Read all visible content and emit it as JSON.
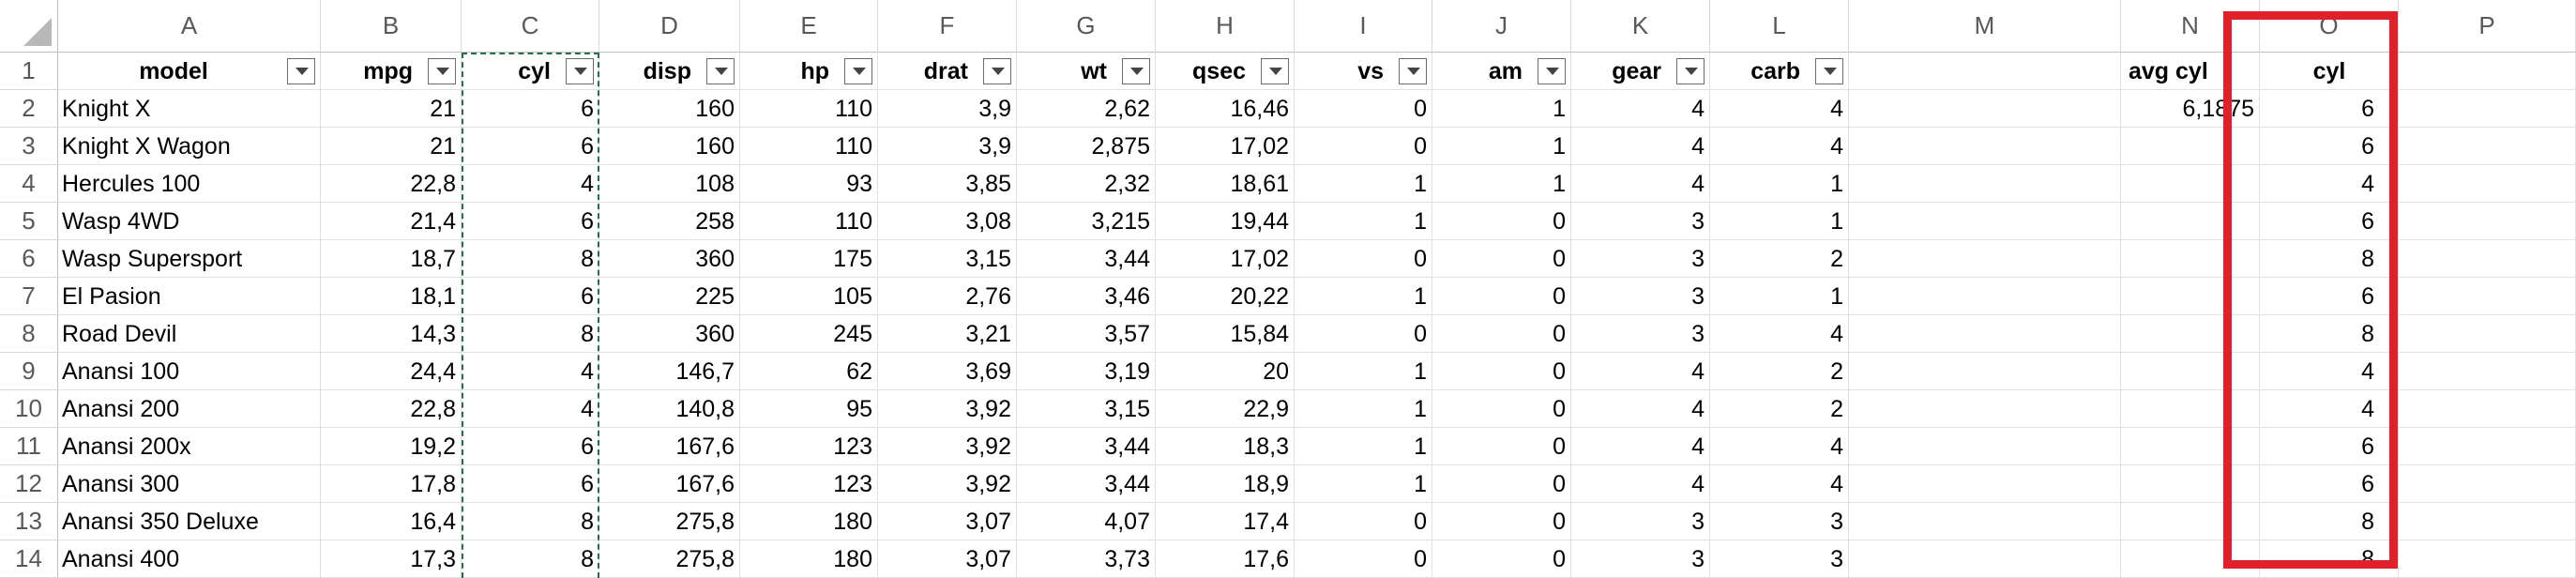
{
  "columns": [
    "A",
    "B",
    "C",
    "D",
    "E",
    "F",
    "G",
    "H",
    "I",
    "J",
    "K",
    "L",
    "M",
    "N",
    "O",
    "P"
  ],
  "rows": [
    "1",
    "2",
    "3",
    "4",
    "5",
    "6",
    "7",
    "8",
    "9",
    "10",
    "11",
    "12",
    "13",
    "14"
  ],
  "headers": {
    "model": "model",
    "mpg": "mpg",
    "cyl": "cyl",
    "disp": "disp",
    "hp": "hp",
    "drat": "drat",
    "wt": "wt",
    "qsec": "qsec",
    "vs": "vs",
    "am": "am",
    "gear": "gear",
    "carb": "carb",
    "avg_cyl": "avg cyl",
    "o_cyl": "cyl"
  },
  "avg_cyl_value": "6,1875",
  "data": [
    [
      "Knight X",
      "21",
      "6",
      "160",
      "110",
      "3,9",
      "2,62",
      "16,46",
      "0",
      "1",
      "4",
      "4"
    ],
    [
      "Knight X Wagon",
      "21",
      "6",
      "160",
      "110",
      "3,9",
      "2,875",
      "17,02",
      "0",
      "1",
      "4",
      "4"
    ],
    [
      "Hercules 100",
      "22,8",
      "4",
      "108",
      "93",
      "3,85",
      "2,32",
      "18,61",
      "1",
      "1",
      "4",
      "1"
    ],
    [
      "Wasp 4WD",
      "21,4",
      "6",
      "258",
      "110",
      "3,08",
      "3,215",
      "19,44",
      "1",
      "0",
      "3",
      "1"
    ],
    [
      "Wasp Supersport",
      "18,7",
      "8",
      "360",
      "175",
      "3,15",
      "3,44",
      "17,02",
      "0",
      "0",
      "3",
      "2"
    ],
    [
      "El Pasion",
      "18,1",
      "6",
      "225",
      "105",
      "2,76",
      "3,46",
      "20,22",
      "1",
      "0",
      "3",
      "1"
    ],
    [
      "Road Devil",
      "14,3",
      "8",
      "360",
      "245",
      "3,21",
      "3,57",
      "15,84",
      "0",
      "0",
      "3",
      "4"
    ],
    [
      "Anansi 100",
      "24,4",
      "4",
      "146,7",
      "62",
      "3,69",
      "3,19",
      "20",
      "1",
      "0",
      "4",
      "2"
    ],
    [
      "Anansi 200",
      "22,8",
      "4",
      "140,8",
      "95",
      "3,92",
      "3,15",
      "22,9",
      "1",
      "0",
      "4",
      "2"
    ],
    [
      "Anansi 200x",
      "19,2",
      "6",
      "167,6",
      "123",
      "3,92",
      "3,44",
      "18,3",
      "1",
      "0",
      "4",
      "4"
    ],
    [
      "Anansi 300",
      "17,8",
      "6",
      "167,6",
      "123",
      "3,92",
      "3,44",
      "18,9",
      "1",
      "0",
      "4",
      "4"
    ],
    [
      "Anansi 350 Deluxe",
      "16,4",
      "8",
      "275,8",
      "180",
      "3,07",
      "4,07",
      "17,4",
      "0",
      "0",
      "3",
      "3"
    ],
    [
      "Anansi 400",
      "17,3",
      "8",
      "275,8",
      "180",
      "3,07",
      "3,73",
      "17,6",
      "0",
      "0",
      "3",
      "3"
    ]
  ],
  "o_values": [
    "6",
    "6",
    "4",
    "6",
    "8",
    "6",
    "8",
    "4",
    "4",
    "6",
    "6",
    "8",
    "8"
  ],
  "colors": {
    "marquee": "#217346",
    "highlight": "#e0202a",
    "grid": "#e1e1e1"
  }
}
